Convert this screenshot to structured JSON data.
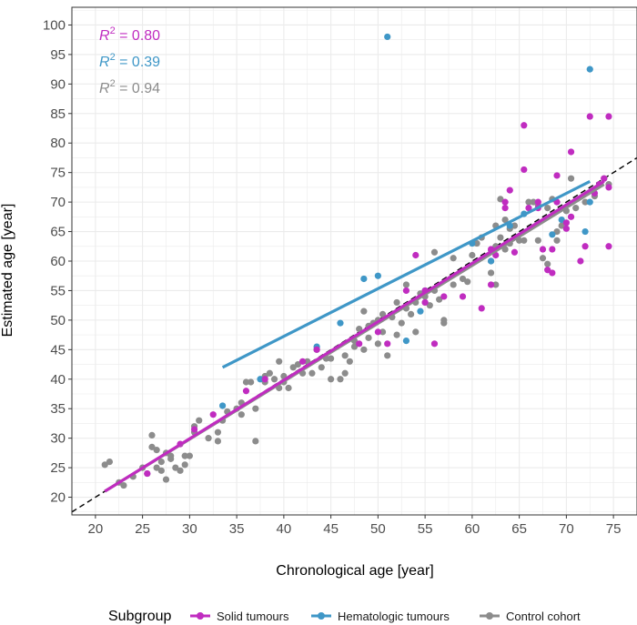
{
  "chart_data": {
    "type": "scatter",
    "xlabel": "Chronological age [year]",
    "ylabel": "Estimated age [year]",
    "xlim": [
      17.5,
      77.5
    ],
    "ylim": [
      17,
      103
    ],
    "x_ticks": [
      20,
      25,
      30,
      35,
      40,
      45,
      50,
      55,
      60,
      65,
      70,
      75
    ],
    "y_ticks": [
      20,
      25,
      30,
      35,
      40,
      45,
      50,
      55,
      60,
      65,
      70,
      75,
      80,
      85,
      90,
      95,
      100
    ],
    "grid": true,
    "legend": {
      "title": "Subgroup",
      "position": "bottom",
      "entries": [
        "Solid tumours",
        "Hematologic tumours",
        "Control cohort"
      ]
    },
    "identity_line": {
      "style": "dashed",
      "color": "#000000",
      "from": [
        17.5,
        17.5
      ],
      "to": [
        77.5,
        77.5
      ]
    },
    "annotations": [
      {
        "r_label": "R",
        "sup": "2",
        "value": " = 0.80",
        "color": "#c02cc0"
      },
      {
        "r_label": "R",
        "sup": "2",
        "value": " = 0.39",
        "color": "#3f97c7"
      },
      {
        "r_label": "R",
        "sup": "2",
        "value": " = 0.94",
        "color": "#8c8c8c"
      }
    ],
    "series": [
      {
        "name": "Control cohort",
        "color": "#8c8c8c",
        "fit": {
          "x0": 21,
          "y0": 21,
          "x1": 74,
          "y1": 73
        },
        "points": [
          [
            21,
            25.5
          ],
          [
            21.5,
            26
          ],
          [
            22.5,
            22.5
          ],
          [
            23,
            22
          ],
          [
            24,
            23.5
          ],
          [
            25,
            25
          ],
          [
            25.5,
            24
          ],
          [
            26,
            30.5
          ],
          [
            26,
            28.5
          ],
          [
            26.5,
            28
          ],
          [
            26.5,
            25
          ],
          [
            27,
            26
          ],
          [
            27,
            24.5
          ],
          [
            27.5,
            27.5
          ],
          [
            27.5,
            23
          ],
          [
            28,
            27
          ],
          [
            28,
            26.5
          ],
          [
            28.5,
            25
          ],
          [
            29,
            24.5
          ],
          [
            29.5,
            27
          ],
          [
            29.5,
            25.5
          ],
          [
            30,
            27
          ],
          [
            30.5,
            32
          ],
          [
            30.5,
            31
          ],
          [
            31,
            33
          ],
          [
            32,
            30
          ],
          [
            33,
            31
          ],
          [
            33,
            29.5
          ],
          [
            33.5,
            33
          ],
          [
            34,
            34.5
          ],
          [
            35,
            35
          ],
          [
            35.5,
            34
          ],
          [
            35.5,
            36
          ],
          [
            36,
            39.5
          ],
          [
            36.5,
            39.5
          ],
          [
            37,
            29.5
          ],
          [
            37,
            35
          ],
          [
            38,
            39.5
          ],
          [
            38,
            40.5
          ],
          [
            38.5,
            41
          ],
          [
            39,
            40
          ],
          [
            39.5,
            43
          ],
          [
            39.5,
            38.5
          ],
          [
            40,
            39.5
          ],
          [
            40,
            40.5
          ],
          [
            40.5,
            38.5
          ],
          [
            41,
            42
          ],
          [
            41.5,
            42.5
          ],
          [
            42,
            41
          ],
          [
            42.5,
            43
          ],
          [
            43,
            41
          ],
          [
            43.5,
            45
          ],
          [
            44,
            42
          ],
          [
            44.5,
            43.5
          ],
          [
            45,
            43.5
          ],
          [
            45,
            40
          ],
          [
            46,
            40
          ],
          [
            46.5,
            41
          ],
          [
            46.5,
            44
          ],
          [
            47,
            43
          ],
          [
            47.5,
            45.5
          ],
          [
            47.5,
            46.5
          ],
          [
            48,
            48.5
          ],
          [
            48.5,
            45
          ],
          [
            48.5,
            51.5
          ],
          [
            49,
            49
          ],
          [
            49,
            47
          ],
          [
            49.5,
            49.5
          ],
          [
            50,
            50
          ],
          [
            50,
            46
          ],
          [
            50.5,
            48
          ],
          [
            50.5,
            51
          ],
          [
            51,
            44
          ],
          [
            51.5,
            50.5
          ],
          [
            52,
            53
          ],
          [
            52,
            47.5
          ],
          [
            52.5,
            49.5
          ],
          [
            53,
            56
          ],
          [
            53,
            52
          ],
          [
            53.5,
            51
          ],
          [
            54,
            48
          ],
          [
            54,
            53
          ],
          [
            54.5,
            54.5
          ],
          [
            55,
            54
          ],
          [
            55,
            53
          ],
          [
            55.5,
            52.5
          ],
          [
            56,
            55
          ],
          [
            56,
            61.5
          ],
          [
            56.5,
            53.5
          ],
          [
            57,
            50
          ],
          [
            57,
            49.5
          ],
          [
            58,
            60.5
          ],
          [
            58,
            56
          ],
          [
            59,
            57
          ],
          [
            59.5,
            56.5
          ],
          [
            60,
            61
          ],
          [
            60.5,
            63
          ],
          [
            61,
            64
          ],
          [
            62,
            60
          ],
          [
            62,
            58
          ],
          [
            62.5,
            62.5
          ],
          [
            62.5,
            66
          ],
          [
            62.5,
            56
          ],
          [
            63,
            70.5
          ],
          [
            63,
            64
          ],
          [
            63.5,
            62
          ],
          [
            63.5,
            67
          ],
          [
            64,
            63
          ],
          [
            64,
            65.5
          ],
          [
            64.5,
            66
          ],
          [
            65,
            63.5
          ],
          [
            65.5,
            63.5
          ],
          [
            66,
            70
          ],
          [
            66.5,
            70
          ],
          [
            67,
            63.5
          ],
          [
            67,
            69.5
          ],
          [
            67.5,
            60.5
          ],
          [
            68,
            59.5
          ],
          [
            68,
            69
          ],
          [
            68.5,
            70.5
          ],
          [
            69,
            65
          ],
          [
            69,
            63.5
          ],
          [
            69.5,
            66
          ],
          [
            70,
            68.5
          ],
          [
            70.5,
            74
          ],
          [
            71,
            69
          ],
          [
            72,
            70
          ],
          [
            73,
            71
          ],
          [
            74,
            74
          ],
          [
            74.5,
            73
          ]
        ]
      },
      {
        "name": "Solid tumours",
        "color": "#c02cc0",
        "fit": {
          "x0": 21,
          "y0": 21,
          "x1": 74,
          "y1": 73.5
        },
        "points": [
          [
            25.5,
            24
          ],
          [
            29,
            29
          ],
          [
            30.5,
            31.5
          ],
          [
            32.5,
            34
          ],
          [
            36,
            38
          ],
          [
            38,
            40
          ],
          [
            42,
            43
          ],
          [
            43.5,
            45
          ],
          [
            48,
            46
          ],
          [
            50,
            48
          ],
          [
            51,
            46
          ],
          [
            53,
            55
          ],
          [
            54,
            61
          ],
          [
            55,
            55
          ],
          [
            55,
            53
          ],
          [
            56,
            46
          ],
          [
            57,
            54
          ],
          [
            59,
            54
          ],
          [
            61,
            52
          ],
          [
            62,
            56
          ],
          [
            62,
            62
          ],
          [
            62.5,
            61
          ],
          [
            63.5,
            69
          ],
          [
            63.5,
            70
          ],
          [
            64,
            72
          ],
          [
            64.5,
            61.5
          ],
          [
            65.5,
            75.5
          ],
          [
            65.5,
            83
          ],
          [
            66,
            69
          ],
          [
            67,
            69
          ],
          [
            67,
            70
          ],
          [
            67.5,
            62
          ],
          [
            68,
            58.5
          ],
          [
            68.5,
            58
          ],
          [
            68.5,
            62
          ],
          [
            69,
            70
          ],
          [
            69,
            74.5
          ],
          [
            70,
            66.5
          ],
          [
            70,
            65.5
          ],
          [
            70.5,
            78.5
          ],
          [
            70.5,
            67.5
          ],
          [
            71.5,
            60
          ],
          [
            72,
            62.5
          ],
          [
            72.5,
            84.5
          ],
          [
            73,
            71.5
          ],
          [
            73.5,
            73
          ],
          [
            74,
            74
          ],
          [
            74.5,
            72.5
          ],
          [
            74.5,
            84.5
          ],
          [
            74.5,
            62.5
          ]
        ]
      },
      {
        "name": "Hematologic tumours",
        "color": "#3f97c7",
        "fit": {
          "x0": 33.5,
          "y0": 42,
          "x1": 72.5,
          "y1": 73.5
        },
        "points": [
          [
            33.5,
            35.5
          ],
          [
            37.5,
            40
          ],
          [
            43.5,
            45.5
          ],
          [
            46,
            49.5
          ],
          [
            48.5,
            57
          ],
          [
            50,
            57.5
          ],
          [
            51,
            98
          ],
          [
            53,
            46.5
          ],
          [
            54.5,
            51.5
          ],
          [
            55,
            55
          ],
          [
            60,
            63
          ],
          [
            62,
            60
          ],
          [
            64,
            66
          ],
          [
            65.5,
            68
          ],
          [
            68.5,
            64.5
          ],
          [
            69.5,
            67
          ],
          [
            72,
            65
          ],
          [
            72.5,
            70
          ],
          [
            72.5,
            92.5
          ]
        ]
      }
    ]
  }
}
